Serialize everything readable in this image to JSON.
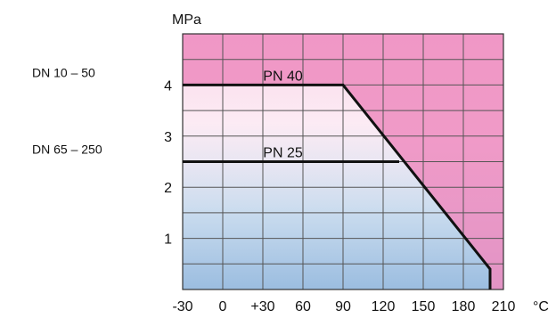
{
  "chart_data": {
    "type": "line",
    "title": "",
    "xlabel": "°C",
    "ylabel": "MPa",
    "x_ticks": [
      -30,
      0,
      30,
      60,
      90,
      120,
      150,
      180,
      210
    ],
    "x_tick_labels": [
      "-30",
      "0",
      "+30",
      "60",
      "90",
      "120",
      "150",
      "180",
      "210"
    ],
    "y_ticks": [
      1,
      2,
      3,
      4
    ],
    "y_tick_labels": [
      "1",
      "2",
      "3",
      "4"
    ],
    "xlim": [
      -30,
      210
    ],
    "ylim": [
      0,
      5
    ],
    "grid": true,
    "series": [
      {
        "name": "PN 40",
        "label": "DN 10 – 50",
        "x": [
          -30,
          90,
          200,
          200
        ],
        "y": [
          4.0,
          4.0,
          0.4,
          0.0
        ]
      },
      {
        "name": "PN 25",
        "label": "DN 65 – 250",
        "x": [
          -30,
          132
        ],
        "y": [
          2.5,
          2.5
        ]
      }
    ],
    "background": {
      "top_color": "#ee8cbf",
      "bottom_color": "#9bbde0"
    },
    "line_color": "#111111",
    "grid_color": "#555555"
  }
}
